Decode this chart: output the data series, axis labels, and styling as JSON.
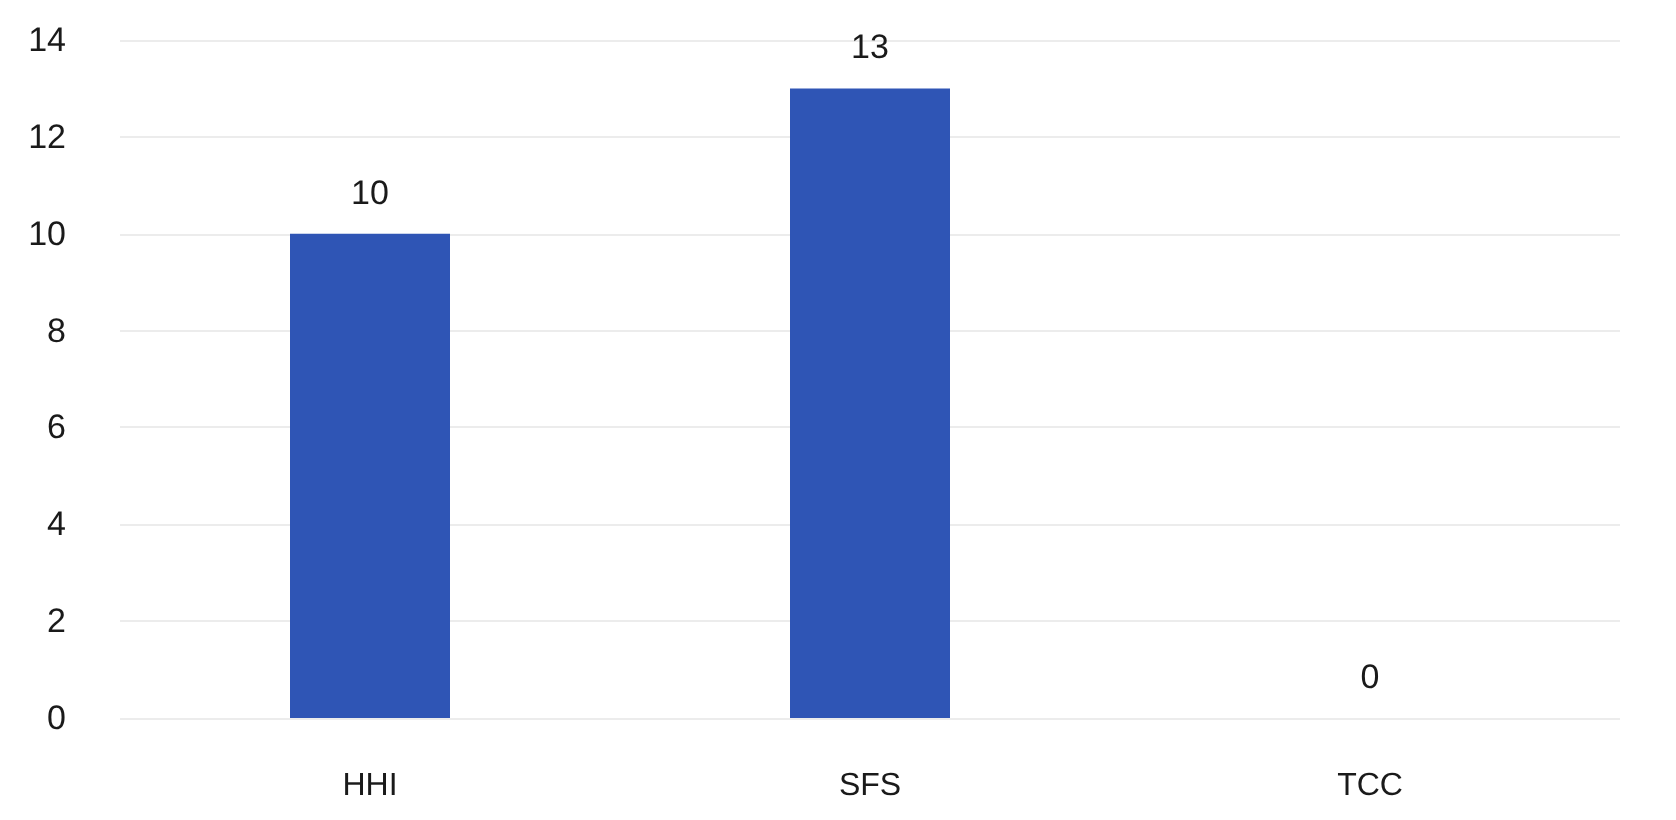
{
  "chart_data": {
    "type": "bar",
    "categories": [
      "HHI",
      "SFS",
      "TCC"
    ],
    "values": [
      10,
      13,
      0
    ],
    "color": "#2f55b5",
    "ylim": [
      0,
      14
    ],
    "yticks": [
      0,
      2,
      4,
      6,
      8,
      10,
      12,
      14
    ],
    "grid": "y",
    "data_labels": true
  }
}
